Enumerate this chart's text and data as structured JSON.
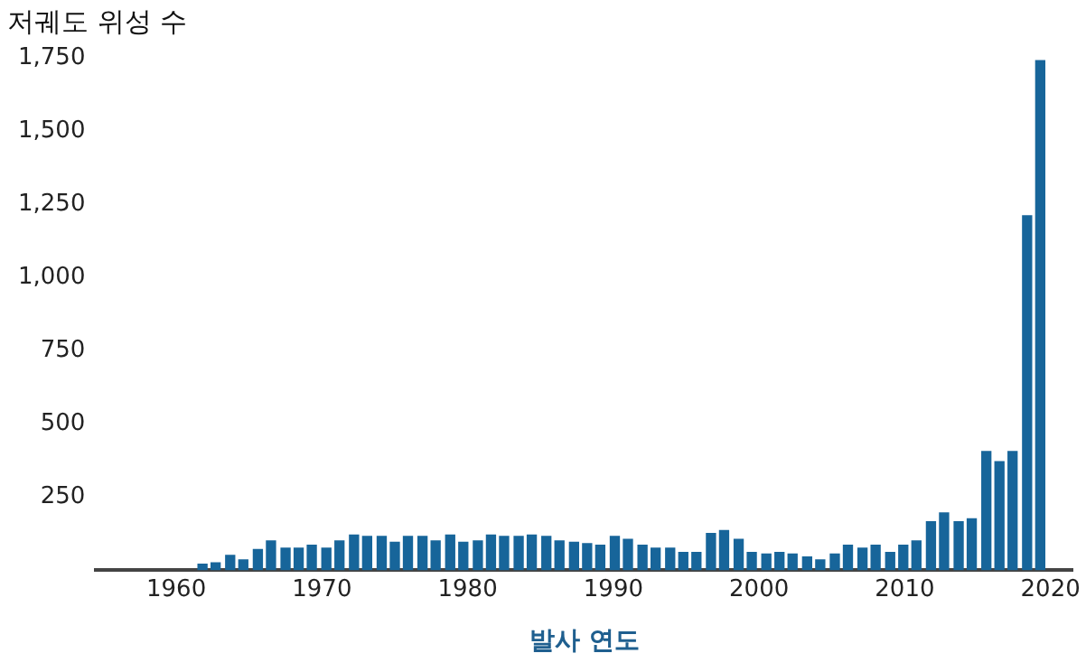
{
  "chart_data": {
    "type": "bar",
    "title": "저궤도 위성 수",
    "xlabel": "발사 연도",
    "x": [
      1961.8,
      1962.7,
      1963.7,
      1964.6,
      1965.6,
      1966.5,
      1967.5,
      1968.4,
      1969.3,
      1970.3,
      1971.2,
      1972.2,
      1973.1,
      1974.1,
      1975.0,
      1975.9,
      1976.9,
      1977.8,
      1978.8,
      1979.7,
      1980.7,
      1981.6,
      1982.5,
      1983.5,
      1984.4,
      1985.4,
      1986.3,
      1987.3,
      1988.2,
      1989.1,
      1990.1,
      1991.0,
      1992.0,
      1992.9,
      1993.9,
      1994.8,
      1995.7,
      1996.7,
      1997.6,
      1998.6,
      1999.5,
      2000.5,
      2001.4,
      2002.3,
      2003.3,
      2004.2,
      2005.2,
      2006.1,
      2007.1,
      2008.0,
      2009.0,
      2009.9,
      2010.8,
      2011.8,
      2012.7,
      2013.7,
      2014.6,
      2015.6,
      2016.5,
      2017.4,
      2018.4,
      2019.3
    ],
    "values": [
      20,
      25,
      50,
      35,
      70,
      100,
      75,
      75,
      85,
      75,
      100,
      120,
      115,
      115,
      95,
      115,
      115,
      100,
      120,
      95,
      100,
      120,
      115,
      115,
      120,
      115,
      100,
      95,
      90,
      85,
      115,
      105,
      85,
      75,
      75,
      60,
      60,
      125,
      135,
      105,
      60,
      55,
      60,
      55,
      45,
      35,
      55,
      85,
      75,
      85,
      60,
      85,
      100,
      165,
      195,
      165,
      175,
      405,
      370,
      405,
      1210,
      1740
    ],
    "color": "#17659a",
    "xlim": [
      1954.5,
      2021.5
    ],
    "xticks": [
      1960,
      1970,
      1980,
      1990,
      2000,
      2010,
      2020
    ],
    "ylim": [
      0,
      1750
    ],
    "yticks": [
      250,
      500,
      750,
      {
        "value": 1000,
        "label": "1,000"
      },
      {
        "value": 1250,
        "label": "1,250"
      },
      {
        "value": 1500,
        "label": "1,500"
      },
      {
        "value": 1750,
        "label": "1,750"
      }
    ],
    "grid": false
  }
}
